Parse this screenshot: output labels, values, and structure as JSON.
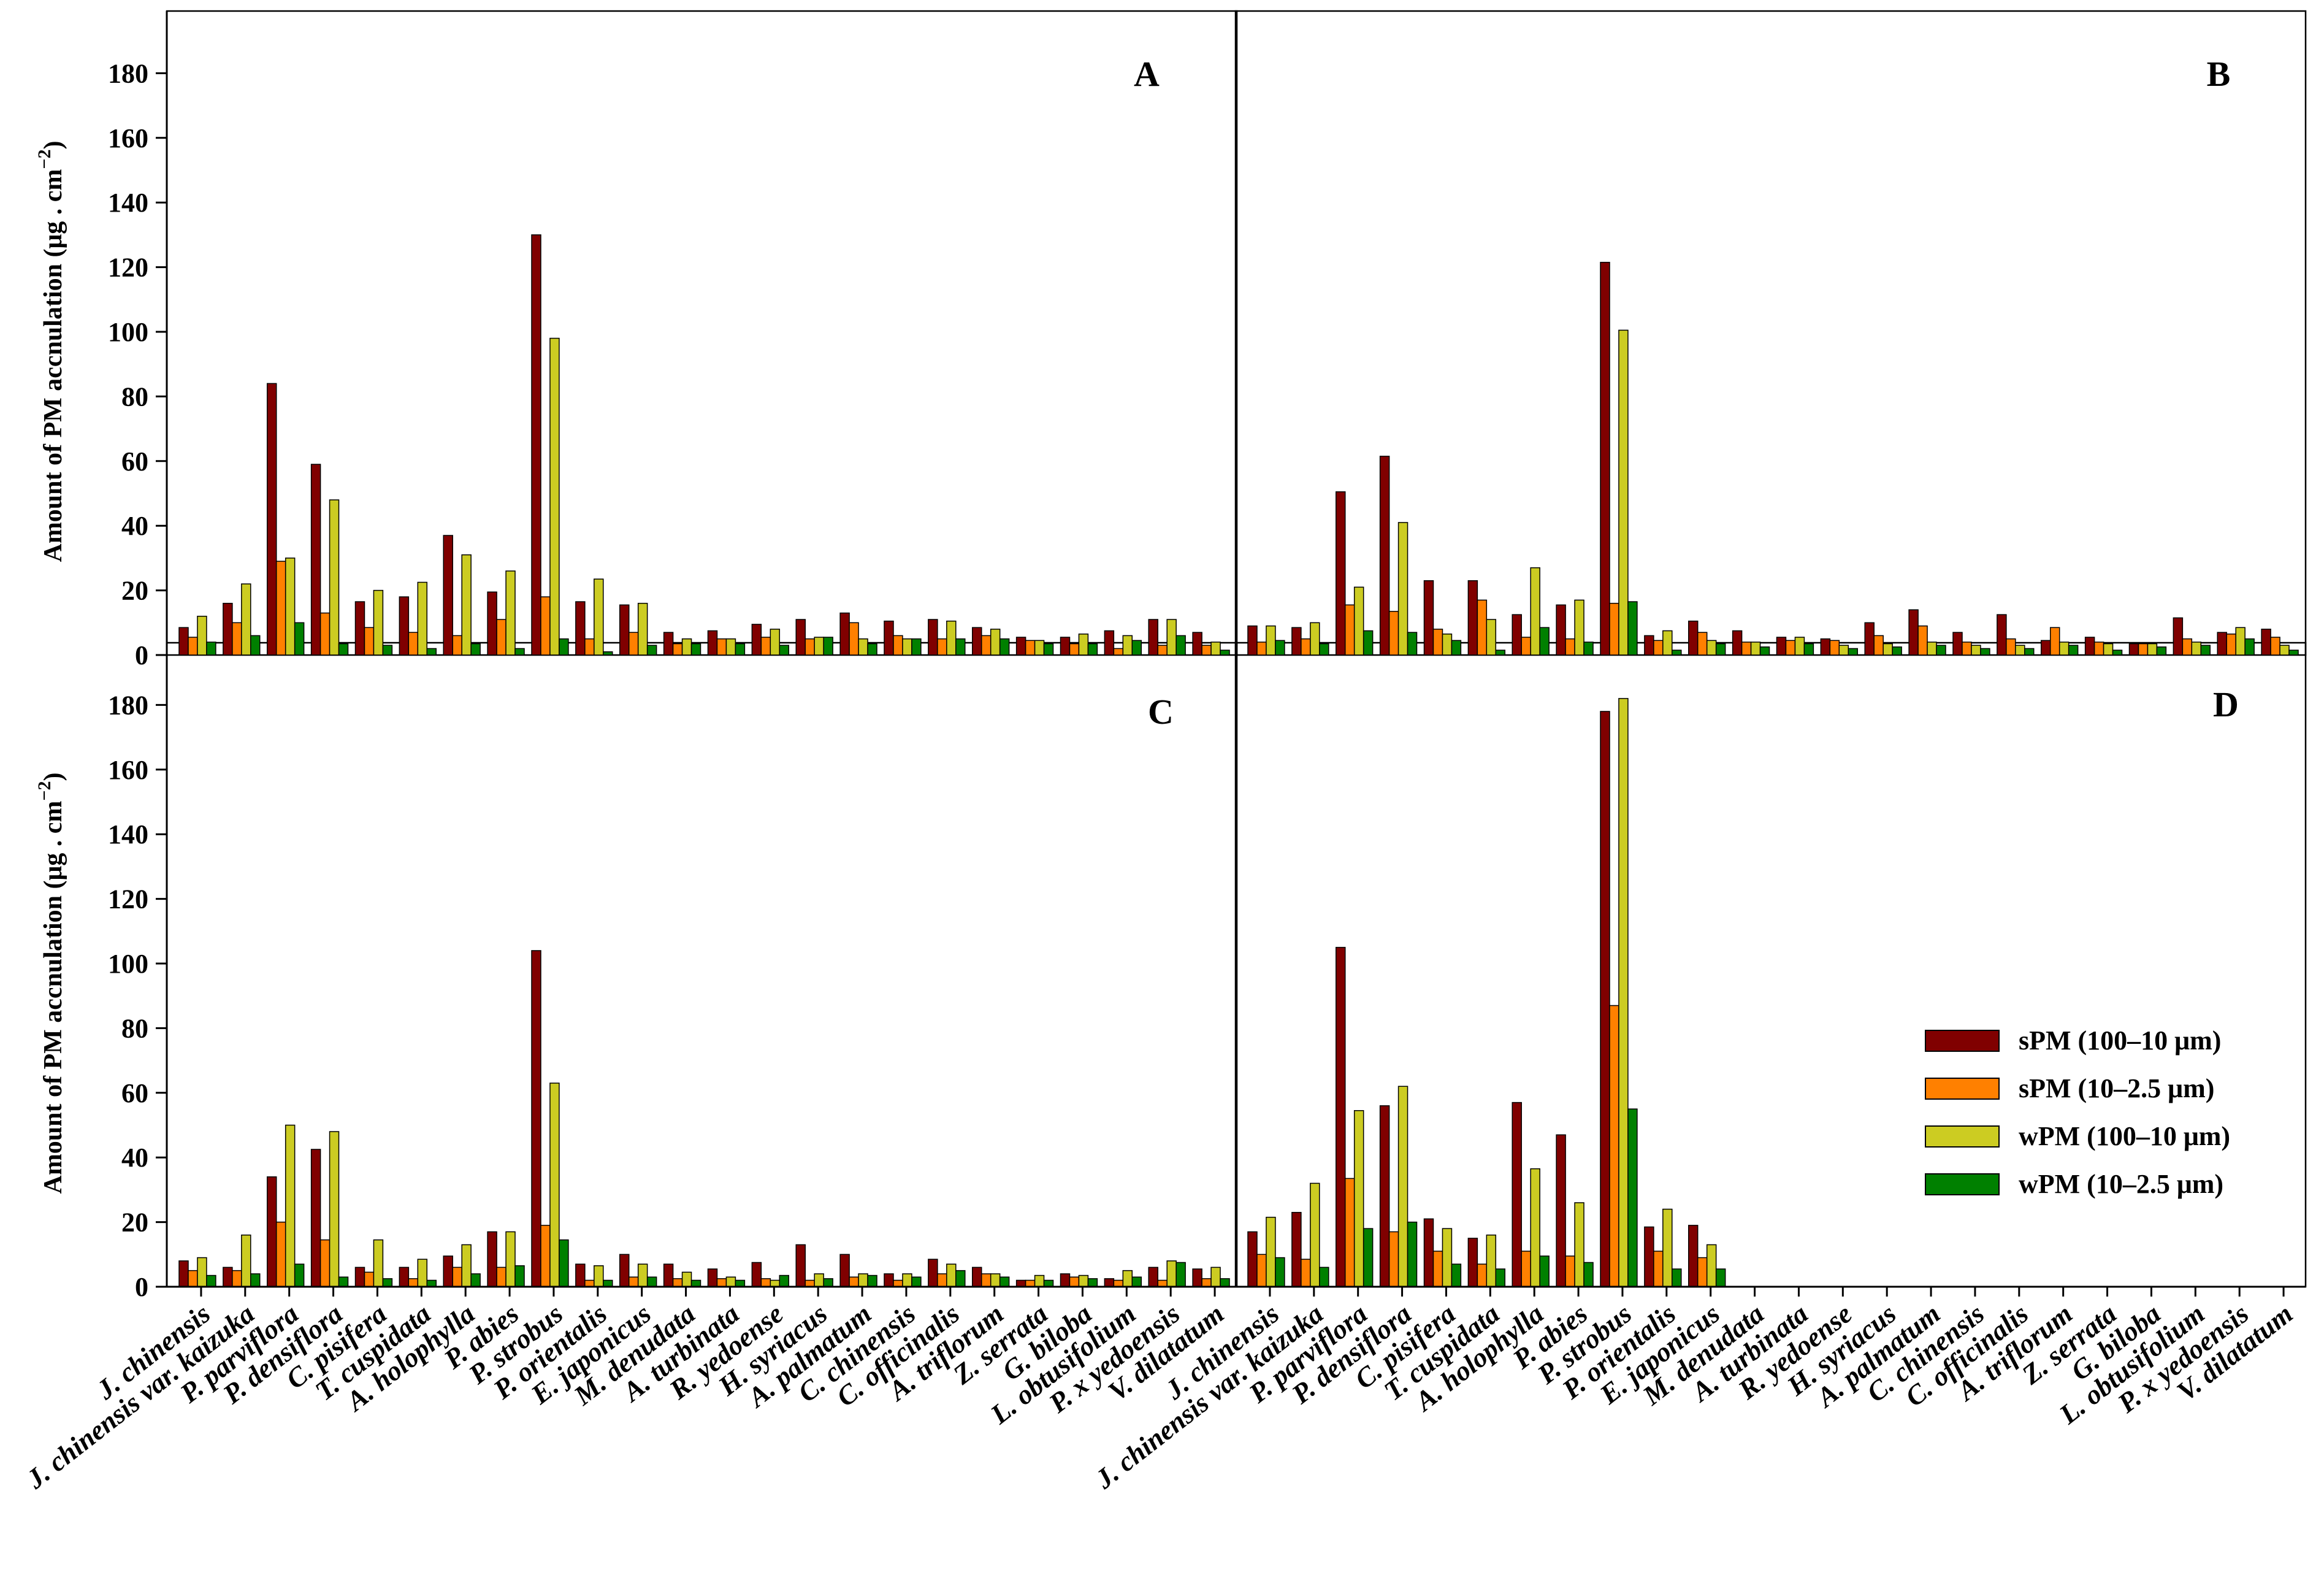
{
  "chart_data": {
    "type": "bar",
    "categories": [
      "J. chinensis",
      "J. chinensis var. kaizuka",
      "P. parviflora",
      "P. densiflora",
      "C. pisifera",
      "T. cuspidata",
      "A. holophylla",
      "P. abies",
      "P. strobus",
      "P. orientalis",
      "E. japonicus",
      "M. denudata",
      "A. turbinata",
      "R. yedoense",
      "H. syriacus",
      "A. palmatum",
      "C. chinensis",
      "C. officinalis",
      "A. triflorum",
      "Z. serrata",
      "G. biloba",
      "L. obtusifolium",
      "P. x yedoensis",
      "V. dilatatum"
    ],
    "ylabel": "Amount of PM accnulation (μg . cm",
    "ylabel_sup": "−2",
    "ylabel_close": ")",
    "ylim": [
      0,
      190
    ],
    "yticks": [
      0,
      20,
      40,
      60,
      80,
      100,
      120,
      140,
      160,
      180
    ],
    "series_names": [
      "sPM (100–10 μm)",
      "sPM (10–2.5 μm)",
      "wPM (100–10 μm)",
      "wPM (10–2.5 μm)"
    ],
    "colors": [
      "#800000",
      "#FF8000",
      "#CCCC22",
      "#008000"
    ],
    "panels": [
      {
        "label": "A",
        "values": [
          [
            8.5,
            16,
            84,
            59,
            16.5,
            18,
            37,
            19.5,
            130,
            16.5,
            15.5,
            7,
            7.5,
            9.5,
            11,
            13,
            10.5,
            11,
            8.5,
            5.5,
            5.5,
            7.5,
            11,
            7
          ],
          [
            5.5,
            10,
            29,
            13,
            8.5,
            7,
            6,
            11,
            18,
            5,
            7,
            3.5,
            5,
            5.5,
            5,
            10,
            6,
            5,
            6,
            4.5,
            3.5,
            2,
            3,
            3
          ],
          [
            12,
            22,
            30,
            48,
            20,
            22.5,
            31,
            26,
            98,
            23.5,
            16,
            5,
            5,
            8,
            5.5,
            5,
            5,
            10.5,
            8,
            4.5,
            6.5,
            6,
            11,
            4
          ],
          [
            4,
            6,
            10,
            3.5,
            3,
            2,
            3.5,
            2,
            5,
            1,
            3,
            3.5,
            3.5,
            3,
            5.5,
            3.5,
            5,
            5,
            5,
            3.5,
            3.5,
            4.5,
            6,
            1.5
          ]
        ]
      },
      {
        "label": "B",
        "values": [
          [
            9,
            8.5,
            50.5,
            61.5,
            23,
            23,
            12.5,
            15.5,
            121.5,
            6,
            10.5,
            7.5,
            5.5,
            5,
            10,
            14,
            7,
            12.5,
            4.5,
            5.5,
            3.5,
            11.5,
            7,
            8
          ],
          [
            4,
            5,
            15.5,
            13.5,
            8,
            17,
            5.5,
            5,
            16,
            4.5,
            7,
            4,
            4.5,
            4.5,
            6,
            9,
            4,
            5,
            8.5,
            4,
            3.5,
            5,
            6.5,
            5.5
          ],
          [
            9,
            10,
            21,
            41,
            6.5,
            11,
            27,
            17,
            100.5,
            7.5,
            4.5,
            4,
            5.5,
            3,
            3.5,
            4,
            3,
            3,
            4,
            3.5,
            3.5,
            4,
            8.5,
            3
          ],
          [
            4.5,
            3.5,
            7.5,
            7,
            4.5,
            1.5,
            8.5,
            4,
            16.5,
            1.5,
            3.5,
            2.5,
            3.5,
            2,
            2.5,
            3,
            2,
            2,
            3,
            1.5,
            2.5,
            3,
            5,
            1.5
          ]
        ]
      },
      {
        "label": "C",
        "values": [
          [
            8,
            6,
            34,
            42.5,
            6,
            6,
            9.5,
            17,
            104,
            7,
            10,
            7,
            5.5,
            7.5,
            13,
            10,
            4,
            8.5,
            6,
            2,
            4,
            2.5,
            6,
            5.5
          ],
          [
            5,
            5,
            20,
            14.5,
            4.5,
            2.5,
            6,
            6,
            19,
            2,
            3,
            2.5,
            2.5,
            2.5,
            2,
            3,
            2,
            4,
            4,
            2,
            3,
            2,
            2,
            2.5
          ],
          [
            9,
            16,
            50,
            48,
            14.5,
            8.5,
            13,
            17,
            63,
            6.5,
            7,
            4.5,
            3,
            2,
            4,
            4,
            4,
            7,
            4,
            3.5,
            3.5,
            5,
            8,
            6
          ],
          [
            3.5,
            4,
            7,
            3,
            2.5,
            2,
            4,
            6.5,
            14.5,
            2,
            3,
            2,
            2,
            3.5,
            2.5,
            3.5,
            3,
            5,
            3,
            2,
            2.5,
            3,
            7.5,
            2.5
          ]
        ]
      },
      {
        "label": "D",
        "values": [
          [
            17,
            23,
            105,
            56,
            21,
            15,
            57,
            47,
            178,
            18.5,
            19,
            null,
            null,
            null,
            null,
            null,
            null,
            null,
            null,
            null,
            null,
            null,
            null,
            null
          ],
          [
            10,
            8.5,
            33.5,
            17,
            11,
            7,
            11,
            9.5,
            87,
            11,
            9,
            null,
            null,
            null,
            null,
            null,
            null,
            null,
            null,
            null,
            null,
            null,
            null,
            null
          ],
          [
            21.5,
            32,
            54.5,
            62,
            18,
            16,
            36.5,
            26,
            182,
            24,
            13,
            null,
            null,
            null,
            null,
            null,
            null,
            null,
            null,
            null,
            null,
            null,
            null,
            null
          ],
          [
            9,
            6,
            18,
            20,
            7,
            5.5,
            9.5,
            7.5,
            55,
            5.5,
            5.5,
            null,
            null,
            null,
            null,
            null,
            null,
            null,
            null,
            null,
            null,
            null,
            null,
            null
          ]
        ]
      }
    ],
    "legend": [
      {
        "label": "sPM (100–10 μm)",
        "color": "#800000"
      },
      {
        "label": "sPM (10–2.5 μm)",
        "color": "#FF8000"
      },
      {
        "label": "wPM (100–10 μm)",
        "color": "#CCCC22"
      },
      {
        "label": "wPM (10–2.5 μm)",
        "color": "#008000"
      }
    ],
    "legend_position": "lower-right of panel D"
  }
}
